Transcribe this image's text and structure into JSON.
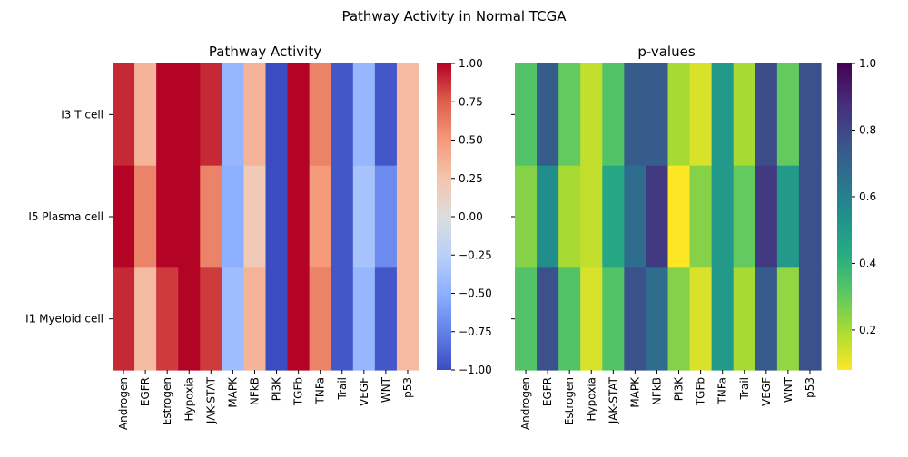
{
  "figure": {
    "suptitle": "Pathway Activity in Normal TCGA"
  },
  "chart_data": [
    {
      "type": "heatmap",
      "title": "Pathway Activity",
      "colormap": "coolwarm",
      "colorbar": {
        "range": [
          -1.0,
          1.0
        ],
        "ticks": [
          "1.00",
          "0.75",
          "0.50",
          "0.25",
          "0.00",
          "−0.25",
          "−0.50",
          "−0.75",
          "−1.00"
        ]
      },
      "rows": [
        "I3 T cell",
        "I5 Plasma cell",
        "I1 Myeloid cell"
      ],
      "columns": [
        "Androgen",
        "EGFR",
        "Estrogen",
        "Hypoxia",
        "JAK-STAT",
        "MAPK",
        "NFkB",
        "PI3K",
        "TGFb",
        "TNFa",
        "Trail",
        "VEGF",
        "WNT",
        "p53"
      ],
      "values": [
        [
          0.9,
          0.35,
          1.0,
          1.0,
          0.9,
          -0.45,
          0.35,
          -1.0,
          1.0,
          0.6,
          -0.95,
          -0.45,
          -0.95,
          0.3
        ],
        [
          1.0,
          0.6,
          1.0,
          1.0,
          0.6,
          -0.5,
          0.2,
          -1.0,
          1.0,
          0.5,
          -0.95,
          -0.35,
          -0.7,
          0.3
        ],
        [
          0.9,
          0.3,
          0.85,
          1.0,
          0.85,
          -0.4,
          0.35,
          -1.0,
          1.0,
          0.6,
          -0.95,
          -0.45,
          -0.95,
          0.3
        ]
      ]
    },
    {
      "type": "heatmap",
      "title": "p-values",
      "colormap": "viridis_r",
      "colorbar": {
        "range": [
          0.08,
          1.0
        ],
        "ticks": [
          "1.0",
          "0.8",
          "0.6",
          "0.4",
          "0.2"
        ]
      },
      "rows": [
        "I3 T cell",
        "I5 Plasma cell",
        "I1 Myeloid cell"
      ],
      "columns": [
        "Androgen",
        "EGFR",
        "Estrogen",
        "Hypoxia",
        "JAK-STAT",
        "MAPK",
        "NFkB",
        "PI3K",
        "TGFb",
        "TNFa",
        "Trail",
        "VEGF",
        "WNT",
        "p53"
      ],
      "values": [
        [
          0.33,
          0.73,
          0.3,
          0.16,
          0.33,
          0.73,
          0.73,
          0.2,
          0.13,
          0.5,
          0.2,
          0.78,
          0.3,
          0.77
        ],
        [
          0.25,
          0.55,
          0.2,
          0.16,
          0.45,
          0.67,
          0.84,
          0.08,
          0.25,
          0.5,
          0.3,
          0.84,
          0.5,
          0.77
        ],
        [
          0.33,
          0.77,
          0.33,
          0.13,
          0.33,
          0.77,
          0.67,
          0.25,
          0.13,
          0.5,
          0.2,
          0.73,
          0.23,
          0.77
        ]
      ]
    }
  ]
}
